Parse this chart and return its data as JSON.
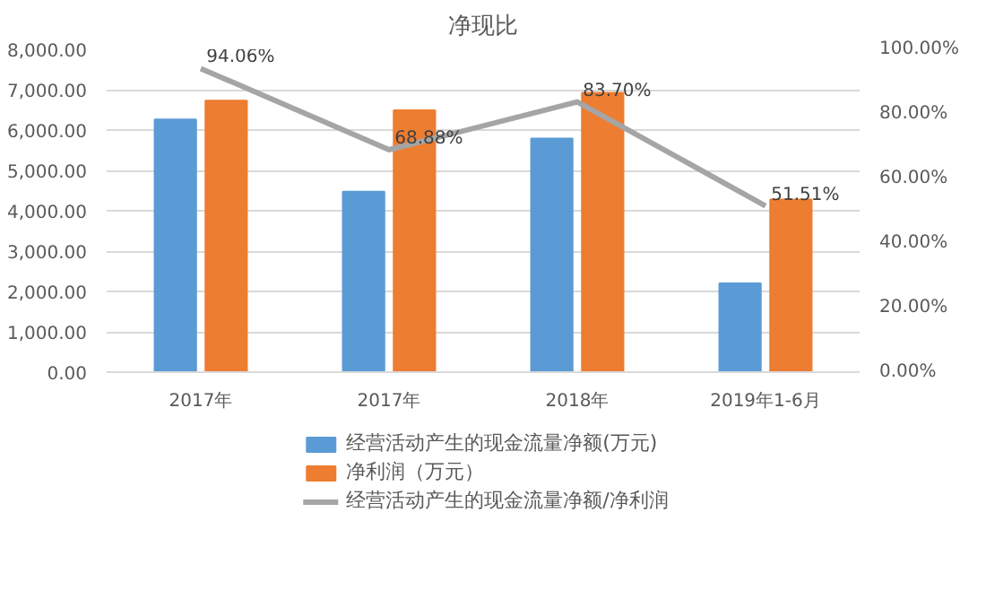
{
  "chart_data": {
    "type": "bar",
    "title": "净现比",
    "categories": [
      "2017年",
      "2017年",
      "2018年",
      "2019年1-6月"
    ],
    "series": [
      {
        "name": "经营活动产生的现金流量净额(万元)",
        "color": "#5b9bd5",
        "values": [
          6260,
          4470,
          5790,
          2200
        ]
      },
      {
        "name": "净利润（万元）",
        "color": "#ed7d31",
        "values": [
          6730,
          6490,
          6920,
          4280
        ]
      },
      {
        "name": "经营活动产生的现金流量净额/净利润",
        "type": "line",
        "axis": "y2",
        "color": "#a5a5a5",
        "values": [
          94.06,
          68.88,
          83.7,
          51.51
        ],
        "value_labels": [
          "94.06%",
          "68.88%",
          "83.70%",
          "51.51%"
        ]
      }
    ],
    "ylim": [
      0,
      8000
    ],
    "yticks": [
      {
        "value": 0,
        "label": "0.00"
      },
      {
        "value": 1000,
        "label": "1,000.00"
      },
      {
        "value": 2000,
        "label": "2,000.00"
      },
      {
        "value": 3000,
        "label": "3,000.00"
      },
      {
        "value": 4000,
        "label": "4,000.00"
      },
      {
        "value": 5000,
        "label": "5,000.00"
      },
      {
        "value": 6000,
        "label": "6,000.00"
      },
      {
        "value": 7000,
        "label": "7,000.00"
      },
      {
        "value": 8000,
        "label": "8,000.00"
      }
    ],
    "y2lim": [
      0,
      100
    ],
    "y2ticks": [
      {
        "value": 0,
        "label": "0.00%"
      },
      {
        "value": 20,
        "label": "20.00%"
      },
      {
        "value": 40,
        "label": "40.00%"
      },
      {
        "value": 60,
        "label": "60.00%"
      },
      {
        "value": 80,
        "label": "80.00%"
      },
      {
        "value": 100,
        "label": "100.00%"
      }
    ],
    "grid": "y",
    "legend": "bottom",
    "marker": "none",
    "line_style": "solid"
  }
}
